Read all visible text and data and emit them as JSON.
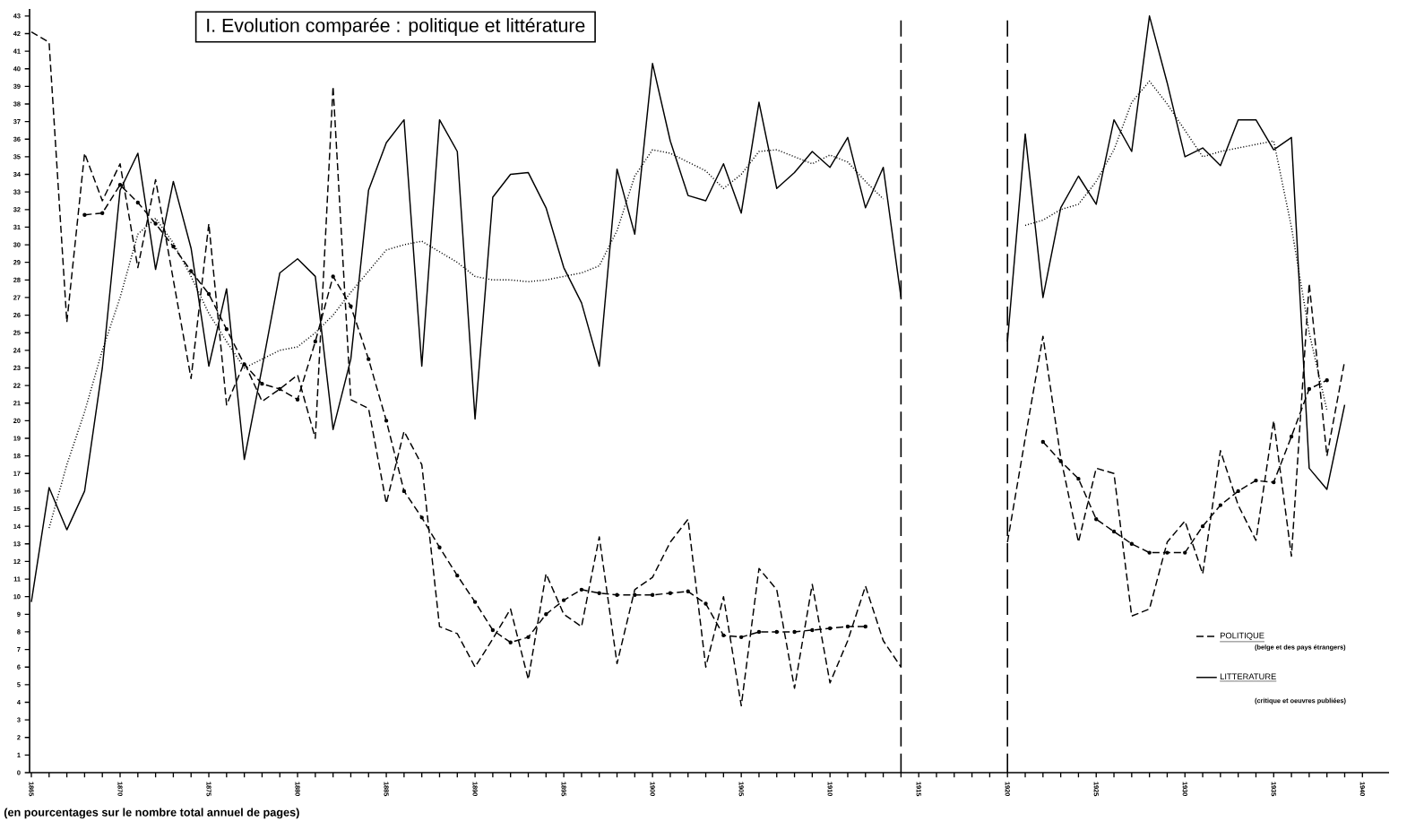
{
  "chart_data": {
    "type": "line",
    "title": "I. Evolution comparée : politique et littérature",
    "annotations": [
      "(en pourcentages sur le nombre total annuel de pages)",
      "(belge et des pays étrangers)",
      "(critique et oeuvres publiées)"
    ],
    "x": [
      1865,
      1866,
      1867,
      1868,
      1869,
      1870,
      1871,
      1872,
      1873,
      1874,
      1875,
      1876,
      1877,
      1878,
      1879,
      1880,
      1881,
      1882,
      1883,
      1884,
      1885,
      1886,
      1887,
      1888,
      1889,
      1890,
      1891,
      1892,
      1893,
      1894,
      1895,
      1896,
      1897,
      1898,
      1899,
      1900,
      1901,
      1902,
      1903,
      1904,
      1905,
      1906,
      1907,
      1908,
      1909,
      1910,
      1911,
      1912,
      1913,
      1914,
      1915,
      1916,
      1917,
      1918,
      1919,
      1920,
      1921,
      1922,
      1923,
      1924,
      1925,
      1926,
      1927,
      1928,
      1929,
      1930,
      1931,
      1932,
      1933,
      1934,
      1935,
      1936,
      1937,
      1938,
      1939
    ],
    "series": [
      {
        "name": "POLITIQUE",
        "color": "#000000",
        "line_style": "dashed",
        "values": [
          42.1,
          41.5,
          25.6,
          35.2,
          32.5,
          34.6,
          28.7,
          33.7,
          28,
          22.4,
          31.2,
          20.9,
          23.3,
          21.1,
          21.8,
          22.6,
          19.0,
          39.0,
          21.2,
          20.7,
          15.3,
          19.4,
          17.5,
          8.3,
          7.9,
          6.0,
          7.6,
          9.3,
          5.3,
          11.3,
          9.0,
          8.3,
          13.4,
          6.2,
          10.4,
          11.1,
          13.1,
          14.4,
          6.0,
          10.0,
          3.8,
          11.6,
          10.4,
          4.8,
          10.7,
          5.1,
          7.5,
          10.6,
          7.5,
          6.0,
          null,
          null,
          null,
          null,
          null,
          13.1,
          19,
          24.8,
          17.9,
          13.1,
          17.3,
          17.0,
          8.9,
          9.3,
          13.1,
          14.3,
          11.3,
          18.3,
          15.2,
          13.2,
          20.0,
          12.3,
          27.8,
          18.0,
          23.4
        ]
      },
      {
        "color": "#000000",
        "line_style": "dashed",
        "marker": "circle",
        "values": [
          null,
          null,
          null,
          31.7,
          31.8,
          33.4,
          32.4,
          31.2,
          29.9,
          28.5,
          27.2,
          25.2,
          23.2,
          22.1,
          21.8,
          21.2,
          24.5,
          28.2,
          26.5,
          23.5,
          20.0,
          16.0,
          14.5,
          12.8,
          11.2,
          9.7,
          8.1,
          7.4,
          7.7,
          9.0,
          9.8,
          10.4,
          10.2,
          10.1,
          10.1,
          10.1,
          10.2,
          10.3,
          9.6,
          7.8,
          7.7,
          8.0,
          8.0,
          8.0,
          8.1,
          8.2,
          8.3,
          8.3,
          null,
          null,
          null,
          null,
          null,
          null,
          null,
          null,
          null,
          18.8,
          17.7,
          16.7,
          14.4,
          13.7,
          13.0,
          12.5,
          12.5,
          12.5,
          14.0,
          15.2,
          16.0,
          16.6,
          16.5,
          19.1,
          21.8,
          22.3,
          null
        ]
      },
      {
        "name": "LITTERATURE",
        "color": "#000000",
        "line_style": "solid",
        "values": [
          9.7,
          16.2,
          13.8,
          16.0,
          23,
          33.1,
          35.2,
          28.6,
          33.6,
          29.8,
          23.1,
          27.5,
          17.8,
          23,
          28.4,
          29.2,
          28.2,
          19.5,
          23.5,
          33.1,
          35.8,
          37.1,
          23.1,
          37.1,
          35.3,
          20.1,
          32.7,
          34.0,
          34.1,
          32.1,
          28.7,
          26.7,
          23.1,
          34.3,
          30.6,
          40.3,
          35.9,
          32.8,
          32.5,
          34.6,
          31.8,
          38.1,
          33.2,
          34.1,
          35.3,
          34.4,
          36.1,
          32.1,
          34.4,
          27.0,
          null,
          null,
          null,
          null,
          null,
          24.5,
          36.3,
          27.0,
          32.1,
          33.9,
          32.3,
          37.1,
          35.3,
          43.0,
          39.2,
          35.0,
          35.5,
          34.5,
          37.1,
          37.1,
          35.4,
          36.1,
          17.3,
          16.1,
          20.9
        ]
      },
      {
        "color": "#000000",
        "line_style": "dotted",
        "values": [
          null,
          13.9,
          17.5,
          20.5,
          24,
          27,
          30.6,
          31.5,
          30.1,
          28.2,
          26.1,
          24.5,
          23.0,
          23.5,
          24,
          24.2,
          25,
          26,
          27.3,
          28.5,
          29.7,
          30.0,
          30.2,
          29.6,
          29.0,
          28.2,
          28.0,
          28.0,
          27.9,
          28.0,
          28.2,
          28.4,
          28.8,
          30.8,
          33.9,
          35.4,
          35.2,
          34.7,
          34.2,
          33.2,
          34.0,
          35.3,
          35.4,
          35.0,
          34.6,
          35.1,
          34.7,
          33.6,
          32.6,
          null,
          null,
          null,
          null,
          null,
          null,
          null,
          31.1,
          31.4,
          32.0,
          32.3,
          33.6,
          35.4,
          38.1,
          39.3,
          38.0,
          36.5,
          35.0,
          35.3,
          35.5,
          35.7,
          35.9,
          31,
          25,
          20.6,
          null
        ]
      }
    ],
    "ref_lines": [
      {
        "axis": "x",
        "value": 1914,
        "color": "#000000",
        "line_style": "dashed"
      },
      {
        "axis": "x",
        "value": 1920,
        "color": "#000000",
        "line_style": "dashed"
      }
    ],
    "xlim": [
      1864.9,
      1941.5
    ],
    "ylim": [
      0,
      43.4
    ],
    "xticks": [
      1865,
      {
        "value": 1866,
        "label": null
      },
      {
        "value": 1867,
        "label": null
      },
      {
        "value": 1868,
        "label": null
      },
      {
        "value": 1869,
        "label": null
      },
      1870,
      {
        "value": 1871,
        "label": null
      },
      {
        "value": 1872,
        "label": null
      },
      {
        "value": 1873,
        "label": null
      },
      {
        "value": 1874,
        "label": null
      },
      1875,
      {
        "value": 1876,
        "label": null
      },
      {
        "value": 1877,
        "label": null
      },
      {
        "value": 1878,
        "label": null
      },
      {
        "value": 1879,
        "label": null
      },
      1880,
      {
        "value": 1881,
        "label": null
      },
      {
        "value": 1882,
        "label": null
      },
      {
        "value": 1883,
        "label": null
      },
      {
        "value": 1884,
        "label": null
      },
      1885,
      {
        "value": 1886,
        "label": null
      },
      {
        "value": 1887,
        "label": null
      },
      {
        "value": 1888,
        "label": null
      },
      {
        "value": 1889,
        "label": null
      },
      1890,
      {
        "value": 1891,
        "label": null
      },
      {
        "value": 1892,
        "label": null
      },
      {
        "value": 1893,
        "label": null
      },
      {
        "value": 1894,
        "label": null
      },
      1895,
      {
        "value": 1896,
        "label": null
      },
      {
        "value": 1897,
        "label": null
      },
      {
        "value": 1898,
        "label": null
      },
      {
        "value": 1899,
        "label": null
      },
      1900,
      {
        "value": 1901,
        "label": null
      },
      {
        "value": 1902,
        "label": null
      },
      {
        "value": 1903,
        "label": null
      },
      {
        "value": 1904,
        "label": null
      },
      1905,
      {
        "value": 1906,
        "label": null
      },
      {
        "value": 1907,
        "label": null
      },
      {
        "value": 1908,
        "label": null
      },
      {
        "value": 1909,
        "label": null
      },
      1910,
      {
        "value": 1911,
        "label": null
      },
      {
        "value": 1912,
        "label": null
      },
      {
        "value": 1913,
        "label": null
      },
      {
        "value": 1914,
        "label": null
      },
      1915,
      {
        "value": 1916,
        "label": null
      },
      {
        "value": 1917,
        "label": null
      },
      {
        "value": 1918,
        "label": null
      },
      {
        "value": 1919,
        "label": null
      },
      1920,
      {
        "value": 1921,
        "label": null
      },
      {
        "value": 1922,
        "label": null
      },
      {
        "value": 1923,
        "label": null
      },
      {
        "value": 1924,
        "label": null
      },
      1925,
      {
        "value": 1926,
        "label": null
      },
      {
        "value": 1927,
        "label": null
      },
      {
        "value": 1928,
        "label": null
      },
      {
        "value": 1929,
        "label": null
      },
      1930,
      {
        "value": 1931,
        "label": null
      },
      {
        "value": 1932,
        "label": null
      },
      {
        "value": 1933,
        "label": null
      },
      {
        "value": 1934,
        "label": null
      },
      1935,
      {
        "value": 1936,
        "label": null
      },
      {
        "value": 1937,
        "label": null
      },
      {
        "value": 1938,
        "label": null
      },
      {
        "value": 1939,
        "label": null
      },
      1940
    ],
    "yticks": [
      0,
      1,
      2,
      3,
      4,
      5,
      6,
      7,
      8,
      9,
      10,
      11,
      12,
      13,
      14,
      15,
      16,
      17,
      18,
      19,
      20,
      21,
      22,
      23,
      24,
      25,
      26,
      27,
      28,
      29,
      30,
      31,
      32,
      33,
      34,
      35,
      36,
      37,
      38,
      39,
      40,
      41,
      42,
      43
    ],
    "legend": "bottom right"
  }
}
